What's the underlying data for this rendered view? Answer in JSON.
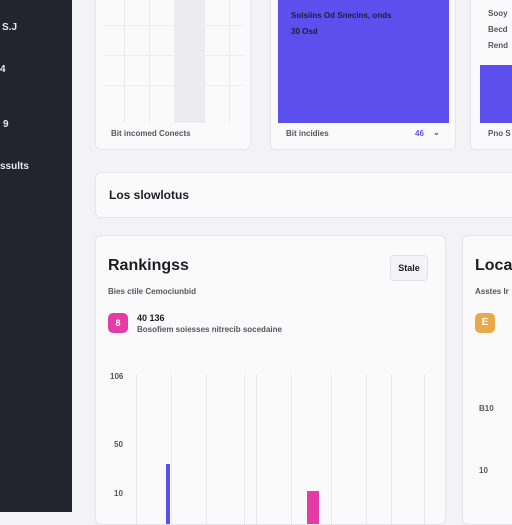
{
  "sidebar": {
    "items": [
      "S.J",
      "4",
      "9",
      "ssults"
    ]
  },
  "top_cards": [
    {
      "footer": "Bit incomed Conects"
    },
    {
      "lines": [
        "Solsiins Od Snecins, onds",
        "30 Osd"
      ],
      "footer": "Bit incidies",
      "footer_value": "46"
    },
    {
      "lines": [
        "Sooy",
        "Becd",
        "Rend"
      ],
      "footer": "Pno S"
    }
  ],
  "banner": {
    "title": "Los slowlotus"
  },
  "rankings": {
    "title": "Rankingss",
    "button": "Stale",
    "subtitle": "Bies ctile Cemociunbid",
    "icon": "8",
    "stat": "40 136",
    "stat_caption": "Bosofiem soiesses nitrecib socedaine",
    "axis_labels": [
      "106",
      "50",
      "10"
    ]
  },
  "location": {
    "title": "Loca",
    "subtitle": "Asstes Ir",
    "icon": "E",
    "labels": [
      "B10",
      "10"
    ]
  }
}
